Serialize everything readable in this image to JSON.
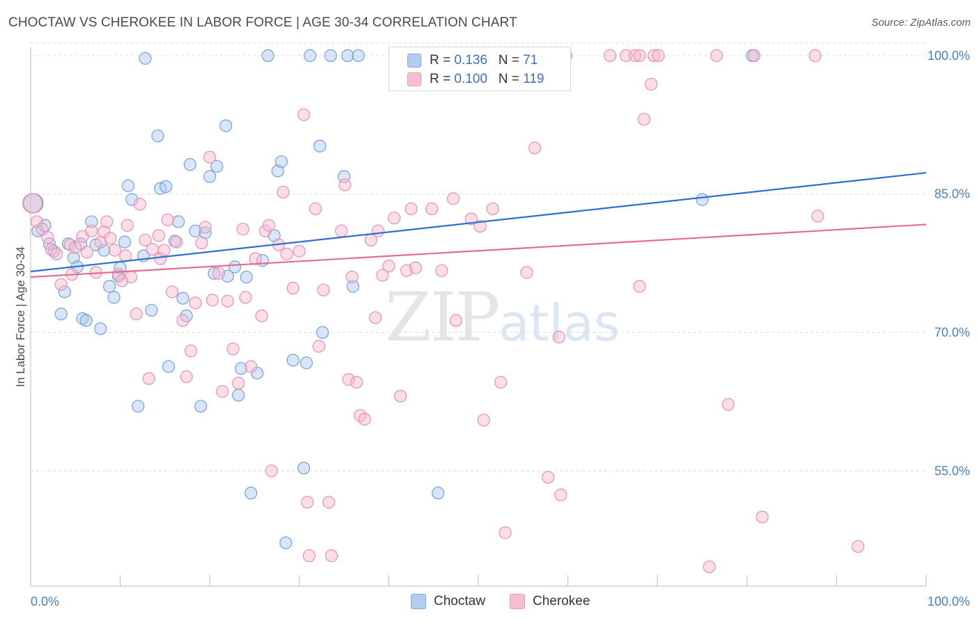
{
  "header": {
    "title": "CHOCTAW VS CHEROKEE IN LABOR FORCE | AGE 30-34 CORRELATION CHART",
    "source": "Source: ZipAtlas.com"
  },
  "watermark": {
    "zip": "ZIP",
    "atlas": "atlas"
  },
  "legend": {
    "rows": [
      {
        "r_label": "R =",
        "r_value": "0.136",
        "n_label": "N =",
        "n_value": "71",
        "color": "#a9c8f0"
      },
      {
        "r_label": "R =",
        "r_value": "0.100",
        "n_label": "N =",
        "n_value": "119",
        "color": "#f6b8cb"
      }
    ]
  },
  "bottom_legend": {
    "items": [
      "Choctaw",
      "Cherokee"
    ]
  },
  "chart_data": {
    "type": "scatter",
    "title": "CHOCTAW VS CHEROKEE IN LABOR FORCE | AGE 30-34 CORRELATION CHART",
    "xlabel": "",
    "ylabel": "In Labor Force | Age 30-34",
    "xlim": [
      0,
      100
    ],
    "ylim": [
      42.5,
      101.5
    ],
    "x_tick_labels": [
      "0.0%",
      "100.0%"
    ],
    "y_ticks": [
      55,
      70,
      85,
      100
    ],
    "y_tick_labels": [
      "55.0%",
      "70.0%",
      "85.0%",
      "100.0%"
    ],
    "grid": "horizontal dashed",
    "legend_position": "top-center",
    "series": [
      {
        "name": "Choctaw",
        "color": "#6fa1e0",
        "fill": "#a9c8f0",
        "trend": {
          "x": [
            0,
            100
          ],
          "y": [
            76.6,
            87.3
          ],
          "color": "#2e6fd0"
        },
        "points": [
          [
            0.3,
            84.0
          ],
          [
            0.8,
            81.0
          ],
          [
            1.6,
            81.6
          ],
          [
            2.1,
            79.6
          ],
          [
            2.6,
            78.8
          ],
          [
            3.4,
            72.0
          ],
          [
            3.8,
            74.4
          ],
          [
            4.2,
            79.6
          ],
          [
            4.8,
            78.1
          ],
          [
            5.2,
            77.1
          ],
          [
            5.6,
            79.6
          ],
          [
            5.8,
            71.5
          ],
          [
            6.2,
            71.3
          ],
          [
            6.8,
            82.0
          ],
          [
            7.3,
            79.5
          ],
          [
            7.8,
            70.4
          ],
          [
            8.2,
            78.9
          ],
          [
            8.8,
            75.0
          ],
          [
            9.3,
            73.8
          ],
          [
            9.8,
            76.1
          ],
          [
            10.0,
            77.0
          ],
          [
            10.5,
            79.8
          ],
          [
            10.9,
            85.9
          ],
          [
            11.3,
            84.4
          ],
          [
            12.0,
            62.0
          ],
          [
            12.6,
            78.3
          ],
          [
            12.8,
            99.7
          ],
          [
            13.5,
            72.4
          ],
          [
            14.2,
            91.3
          ],
          [
            14.5,
            85.6
          ],
          [
            15.1,
            85.8
          ],
          [
            15.4,
            66.3
          ],
          [
            16.1,
            79.9
          ],
          [
            16.5,
            82.0
          ],
          [
            17.0,
            73.7
          ],
          [
            17.4,
            71.8
          ],
          [
            17.8,
            88.2
          ],
          [
            18.4,
            81.0
          ],
          [
            19.0,
            62.0
          ],
          [
            19.5,
            80.8
          ],
          [
            20.0,
            86.9
          ],
          [
            20.5,
            76.4
          ],
          [
            20.8,
            88.0
          ],
          [
            21.8,
            92.4
          ],
          [
            22.0,
            76.1
          ],
          [
            22.8,
            77.1
          ],
          [
            23.2,
            63.2
          ],
          [
            23.5,
            66.1
          ],
          [
            24.1,
            76.0
          ],
          [
            24.6,
            52.6
          ],
          [
            25.3,
            65.6
          ],
          [
            25.9,
            77.8
          ],
          [
            26.5,
            100.0
          ],
          [
            27.2,
            80.5
          ],
          [
            27.6,
            87.5
          ],
          [
            28.0,
            88.5
          ],
          [
            28.5,
            47.2
          ],
          [
            29.3,
            67.0
          ],
          [
            30.5,
            55.3
          ],
          [
            30.8,
            66.7
          ],
          [
            31.2,
            100.0
          ],
          [
            32.3,
            90.2
          ],
          [
            32.6,
            70.0
          ],
          [
            33.5,
            100.0
          ],
          [
            35.0,
            86.9
          ],
          [
            35.4,
            100.0
          ],
          [
            36.0,
            75.0
          ],
          [
            36.6,
            100.0
          ],
          [
            45.5,
            52.6
          ],
          [
            75.0,
            84.4
          ],
          [
            80.6,
            100.0
          ]
        ]
      },
      {
        "name": "Cherokee",
        "color": "#ec8fac",
        "fill": "#f6b8cb",
        "trend": {
          "x": [
            0,
            100
          ],
          "y": [
            76.0,
            81.7
          ],
          "color": "#e46b92"
        },
        "points": [
          [
            0.2,
            84.0
          ],
          [
            0.7,
            82.0
          ],
          [
            1.3,
            81.2
          ],
          [
            1.9,
            80.3
          ],
          [
            2.3,
            79.0
          ],
          [
            2.9,
            78.5
          ],
          [
            3.4,
            75.2
          ],
          [
            4.4,
            79.5
          ],
          [
            4.6,
            76.3
          ],
          [
            5.0,
            79.2
          ],
          [
            5.8,
            80.4
          ],
          [
            6.3,
            78.7
          ],
          [
            6.8,
            81.0
          ],
          [
            7.3,
            76.5
          ],
          [
            7.8,
            79.8
          ],
          [
            8.2,
            80.9
          ],
          [
            8.5,
            82.0
          ],
          [
            8.9,
            80.2
          ],
          [
            9.4,
            78.9
          ],
          [
            9.8,
            76.3
          ],
          [
            10.2,
            75.6
          ],
          [
            10.6,
            78.3
          ],
          [
            10.8,
            81.6
          ],
          [
            11.2,
            76.0
          ],
          [
            11.8,
            72.0
          ],
          [
            12.2,
            83.9
          ],
          [
            12.8,
            80.0
          ],
          [
            13.2,
            65.0
          ],
          [
            13.6,
            79.0
          ],
          [
            14.3,
            80.5
          ],
          [
            14.5,
            78.0
          ],
          [
            14.9,
            78.9
          ],
          [
            15.3,
            82.2
          ],
          [
            15.8,
            74.4
          ],
          [
            16.3,
            79.8
          ],
          [
            17.0,
            71.3
          ],
          [
            17.4,
            65.2
          ],
          [
            17.9,
            68.0
          ],
          [
            18.4,
            73.2
          ],
          [
            19.1,
            79.7
          ],
          [
            19.5,
            81.4
          ],
          [
            20.0,
            89.0
          ],
          [
            20.3,
            73.5
          ],
          [
            21.0,
            76.4
          ],
          [
            21.4,
            63.6
          ],
          [
            22.0,
            73.4
          ],
          [
            22.6,
            68.2
          ],
          [
            23.2,
            64.5
          ],
          [
            23.7,
            81.2
          ],
          [
            24.0,
            73.8
          ],
          [
            24.6,
            66.3
          ],
          [
            25.1,
            78.0
          ],
          [
            25.8,
            71.8
          ],
          [
            26.2,
            81.0
          ],
          [
            26.6,
            81.6
          ],
          [
            26.9,
            55.0
          ],
          [
            27.7,
            79.5
          ],
          [
            28.2,
            85.2
          ],
          [
            28.6,
            78.5
          ],
          [
            29.3,
            74.8
          ],
          [
            30.0,
            78.8
          ],
          [
            30.5,
            93.6
          ],
          [
            30.9,
            51.6
          ],
          [
            31.1,
            45.8
          ],
          [
            31.8,
            83.4
          ],
          [
            32.2,
            68.5
          ],
          [
            32.7,
            74.6
          ],
          [
            33.3,
            51.6
          ],
          [
            33.6,
            45.8
          ],
          [
            34.7,
            81.0
          ],
          [
            35.1,
            86.0
          ],
          [
            35.5,
            64.9
          ],
          [
            35.9,
            76.0
          ],
          [
            36.4,
            64.6
          ],
          [
            36.8,
            61.0
          ],
          [
            37.3,
            60.6
          ],
          [
            38.0,
            80.0
          ],
          [
            38.5,
            71.6
          ],
          [
            38.8,
            81.0
          ],
          [
            39.3,
            76.2
          ],
          [
            40.0,
            77.2
          ],
          [
            40.6,
            82.4
          ],
          [
            41.3,
            63.1
          ],
          [
            42.0,
            76.7
          ],
          [
            42.5,
            83.4
          ],
          [
            43.0,
            77.0
          ],
          [
            44.8,
            83.4
          ],
          [
            45.9,
            76.7
          ],
          [
            47.2,
            84.5
          ],
          [
            47.5,
            71.3
          ],
          [
            49.2,
            82.3
          ],
          [
            50.2,
            81.5
          ],
          [
            50.6,
            60.5
          ],
          [
            51.6,
            83.4
          ],
          [
            52.5,
            64.6
          ],
          [
            53.0,
            48.3
          ],
          [
            55.4,
            76.5
          ],
          [
            56.3,
            90.0
          ],
          [
            57.8,
            54.3
          ],
          [
            59.0,
            69.5
          ],
          [
            59.2,
            52.4
          ],
          [
            68.0,
            75.0
          ],
          [
            68.5,
            93.1
          ],
          [
            69.3,
            96.9
          ],
          [
            59.8,
            100.0
          ],
          [
            64.7,
            100.0
          ],
          [
            66.5,
            100.0
          ],
          [
            67.5,
            100.0
          ],
          [
            68.0,
            100.0
          ],
          [
            69.6,
            100.0
          ],
          [
            70.1,
            100.0
          ],
          [
            76.6,
            100.0
          ],
          [
            77.9,
            62.2
          ],
          [
            80.8,
            100.0
          ],
          [
            81.7,
            50.0
          ],
          [
            87.6,
            100.0
          ],
          [
            87.9,
            82.6
          ],
          [
            92.4,
            46.8
          ],
          [
            75.8,
            44.6
          ]
        ]
      }
    ]
  }
}
